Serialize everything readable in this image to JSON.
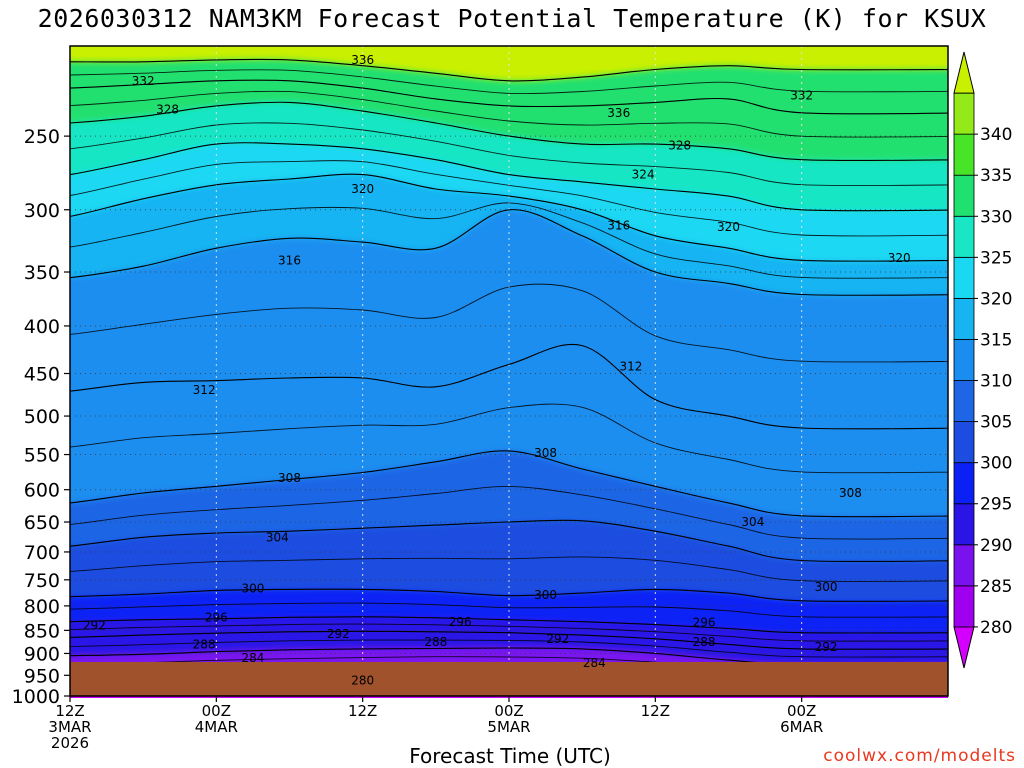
{
  "title": "2026030312 NAM3KM Forecast Potential Temperature (K) for KSUX",
  "xlabel": "Forecast Time (UTC)",
  "credit": "coolwx.com/modelts",
  "chart_data": {
    "type": "heatmap",
    "title": "2026030312 NAM3KM Forecast Potential Temperature (K) for KSUX",
    "xlabel": "Forecast Time (UTC)",
    "ylabel": "",
    "y_axis": {
      "scale": "log",
      "inverted": true,
      "range": [
        1000,
        200
      ],
      "ticks": [
        250,
        300,
        350,
        400,
        450,
        500,
        550,
        600,
        650,
        700,
        750,
        800,
        850,
        900,
        950,
        1000
      ]
    },
    "x_axis": {
      "range_hours": [
        0,
        72
      ],
      "ticks": [
        {
          "hour": 0,
          "lines": [
            "12Z",
            "3MAR",
            "2026"
          ]
        },
        {
          "hour": 12,
          "lines": [
            "00Z",
            "4MAR"
          ]
        },
        {
          "hour": 24,
          "lines": [
            "12Z"
          ]
        },
        {
          "hour": 36,
          "lines": [
            "00Z",
            "5MAR"
          ]
        },
        {
          "hour": 48,
          "lines": [
            "12Z"
          ]
        },
        {
          "hour": 60,
          "lines": [
            "00Z",
            "6MAR"
          ]
        }
      ]
    },
    "grid": true,
    "colorbar": {
      "placement": "right",
      "levels": [
        280,
        285,
        290,
        295,
        300,
        305,
        310,
        315,
        320,
        325,
        330,
        335,
        340
      ],
      "colors": [
        "#d400ff",
        "#a000f0",
        "#7a12ef",
        "#2a14e6",
        "#0a20f5",
        "#1c4de0",
        "#1e66e6",
        "#1a8ef0",
        "#18b4f2",
        "#1ad8f2",
        "#18e6c4",
        "#20e070",
        "#48e428",
        "#94ea18",
        "#c8f000"
      ]
    },
    "ground_color": "#a0522d",
    "contours": [
      {
        "value": 280,
        "pts": [
          [
            0,
            965
          ],
          [
            6,
            968
          ],
          [
            12,
            966
          ],
          [
            18,
            969
          ],
          [
            24,
            968
          ],
          [
            30,
            966
          ],
          [
            36,
            967
          ],
          [
            42,
            968
          ],
          [
            48,
            969
          ],
          [
            54,
            970
          ],
          [
            60,
            971
          ]
        ]
      },
      {
        "value": 284,
        "pts": [
          [
            0,
            940
          ],
          [
            6,
            940
          ],
          [
            12,
            935
          ],
          [
            18,
            932
          ],
          [
            24,
            929
          ],
          [
            30,
            926
          ],
          [
            36,
            928
          ],
          [
            42,
            932
          ],
          [
            48,
            940
          ],
          [
            54,
            948
          ],
          [
            60,
            952
          ]
        ]
      },
      {
        "value": 288,
        "pts": [
          [
            0,
            905
          ],
          [
            6,
            902
          ],
          [
            12,
            896
          ],
          [
            18,
            892
          ],
          [
            24,
            890
          ],
          [
            30,
            889
          ],
          [
            36,
            888
          ],
          [
            42,
            890
          ],
          [
            48,
            900
          ],
          [
            54,
            915
          ],
          [
            60,
            925
          ]
        ]
      },
      {
        "value": 292,
        "pts": [
          [
            0,
            865
          ],
          [
            6,
            860
          ],
          [
            12,
            856
          ],
          [
            18,
            853
          ],
          [
            24,
            852
          ],
          [
            30,
            853
          ],
          [
            36,
            855
          ],
          [
            42,
            860
          ],
          [
            48,
            868
          ],
          [
            54,
            880
          ],
          [
            60,
            890
          ]
        ]
      },
      {
        "value": 296,
        "pts": [
          [
            0,
            832
          ],
          [
            6,
            828
          ],
          [
            12,
            826
          ],
          [
            18,
            823
          ],
          [
            24,
            822
          ],
          [
            30,
            824
          ],
          [
            36,
            828
          ],
          [
            42,
            832
          ],
          [
            48,
            838
          ],
          [
            54,
            846
          ],
          [
            60,
            855
          ]
        ]
      },
      {
        "value": 300,
        "pts": [
          [
            0,
            782
          ],
          [
            6,
            777
          ],
          [
            12,
            770
          ],
          [
            18,
            768
          ],
          [
            24,
            768
          ],
          [
            30,
            772
          ],
          [
            36,
            780
          ],
          [
            42,
            775
          ],
          [
            48,
            768
          ],
          [
            54,
            775
          ],
          [
            60,
            790
          ]
        ]
      },
      {
        "value": 304,
        "pts": [
          [
            0,
            690
          ],
          [
            6,
            675
          ],
          [
            12,
            668
          ],
          [
            18,
            665
          ],
          [
            24,
            660
          ],
          [
            30,
            655
          ],
          [
            36,
            650
          ],
          [
            42,
            648
          ],
          [
            48,
            665
          ],
          [
            54,
            690
          ],
          [
            60,
            715
          ]
        ]
      },
      {
        "value": 308,
        "pts": [
          [
            0,
            620
          ],
          [
            6,
            605
          ],
          [
            12,
            595
          ],
          [
            18,
            585
          ],
          [
            24,
            575
          ],
          [
            30,
            560
          ],
          [
            36,
            545
          ],
          [
            42,
            570
          ],
          [
            48,
            595
          ],
          [
            54,
            620
          ],
          [
            60,
            640
          ]
        ]
      },
      {
        "value": 312,
        "pts": [
          [
            0,
            470
          ],
          [
            6,
            460
          ],
          [
            12,
            458
          ],
          [
            18,
            455
          ],
          [
            24,
            455
          ],
          [
            30,
            465
          ],
          [
            36,
            440
          ],
          [
            42,
            420
          ],
          [
            48,
            480
          ],
          [
            54,
            500
          ],
          [
            60,
            515
          ]
        ]
      },
      {
        "value": 316,
        "pts": [
          [
            0,
            355
          ],
          [
            6,
            345
          ],
          [
            12,
            330
          ],
          [
            18,
            322
          ],
          [
            24,
            325
          ],
          [
            30,
            330
          ],
          [
            36,
            300
          ],
          [
            42,
            320
          ],
          [
            48,
            350
          ],
          [
            54,
            360
          ],
          [
            60,
            370
          ]
        ]
      },
      {
        "value": 320,
        "pts": [
          [
            0,
            305
          ],
          [
            6,
            292
          ],
          [
            12,
            282
          ],
          [
            18,
            278
          ],
          [
            24,
            275
          ],
          [
            30,
            285
          ],
          [
            36,
            290
          ],
          [
            42,
            300
          ],
          [
            48,
            320
          ],
          [
            54,
            330
          ],
          [
            60,
            340
          ]
        ]
      },
      {
        "value": 324,
        "pts": [
          [
            0,
            275
          ],
          [
            6,
            265
          ],
          [
            12,
            255
          ],
          [
            18,
            255
          ],
          [
            24,
            258
          ],
          [
            30,
            265
          ],
          [
            36,
            275
          ],
          [
            42,
            280
          ],
          [
            48,
            285
          ],
          [
            54,
            290
          ],
          [
            60,
            300
          ]
        ]
      },
      {
        "value": 328,
        "pts": [
          [
            0,
            242
          ],
          [
            6,
            238
          ],
          [
            12,
            232
          ],
          [
            18,
            230
          ],
          [
            24,
            235
          ],
          [
            30,
            242
          ],
          [
            36,
            250
          ],
          [
            42,
            255
          ],
          [
            48,
            255
          ],
          [
            54,
            258
          ],
          [
            60,
            265
          ]
        ]
      },
      {
        "value": 332,
        "pts": [
          [
            0,
            222
          ],
          [
            6,
            220
          ],
          [
            12,
            218
          ],
          [
            18,
            218
          ],
          [
            24,
            222
          ],
          [
            30,
            228
          ],
          [
            36,
            232
          ],
          [
            42,
            232
          ],
          [
            48,
            230
          ],
          [
            54,
            228
          ],
          [
            60,
            236
          ]
        ]
      },
      {
        "value": 336,
        "pts": [
          [
            0,
            208
          ],
          [
            6,
            208
          ],
          [
            12,
            207
          ],
          [
            18,
            207
          ],
          [
            24,
            210
          ],
          [
            30,
            214
          ],
          [
            36,
            218
          ],
          [
            42,
            216
          ],
          [
            48,
            212
          ],
          [
            54,
            210
          ],
          [
            60,
            212
          ]
        ]
      }
    ],
    "contour_labels": [
      {
        "text": "336",
        "hour": 24,
        "p": 207
      },
      {
        "text": "332",
        "hour": 6,
        "p": 218
      },
      {
        "text": "332",
        "hour": 60,
        "p": 226
      },
      {
        "text": "328",
        "hour": 8,
        "p": 234
      },
      {
        "text": "336",
        "hour": 45,
        "p": 236
      },
      {
        "text": "328",
        "hour": 50,
        "p": 256
      },
      {
        "text": "324",
        "hour": 47,
        "p": 275
      },
      {
        "text": "320",
        "hour": 24,
        "p": 285
      },
      {
        "text": "320",
        "hour": 54,
        "p": 313
      },
      {
        "text": "316",
        "hour": 45,
        "p": 312
      },
      {
        "text": "316",
        "hour": 18,
        "p": 340
      },
      {
        "text": "320",
        "hour": 68,
        "p": 338
      },
      {
        "text": "312",
        "hour": 11,
        "p": 469
      },
      {
        "text": "312",
        "hour": 46,
        "p": 442
      },
      {
        "text": "308",
        "hour": 39,
        "p": 548
      },
      {
        "text": "308",
        "hour": 18,
        "p": 583
      },
      {
        "text": "308",
        "hour": 64,
        "p": 605
      },
      {
        "text": "304",
        "hour": 56,
        "p": 650
      },
      {
        "text": "304",
        "hour": 17,
        "p": 675
      },
      {
        "text": "300",
        "hour": 15,
        "p": 766
      },
      {
        "text": "300",
        "hour": 39,
        "p": 779
      },
      {
        "text": "300",
        "hour": 62,
        "p": 763
      },
      {
        "text": "296",
        "hour": 12,
        "p": 823
      },
      {
        "text": "296",
        "hour": 32,
        "p": 833
      },
      {
        "text": "296",
        "hour": 52,
        "p": 834
      },
      {
        "text": "292",
        "hour": 2,
        "p": 840
      },
      {
        "text": "292",
        "hour": 22,
        "p": 858
      },
      {
        "text": "292",
        "hour": 40,
        "p": 868
      },
      {
        "text": "292",
        "hour": 62,
        "p": 886
      },
      {
        "text": "288",
        "hour": 11,
        "p": 880
      },
      {
        "text": "288",
        "hour": 30,
        "p": 875
      },
      {
        "text": "288",
        "hour": 52,
        "p": 875
      },
      {
        "text": "284",
        "hour": 15,
        "p": 910
      },
      {
        "text": "284",
        "hour": 43,
        "p": 922
      },
      {
        "text": "280",
        "hour": 24,
        "p": 962
      }
    ]
  }
}
